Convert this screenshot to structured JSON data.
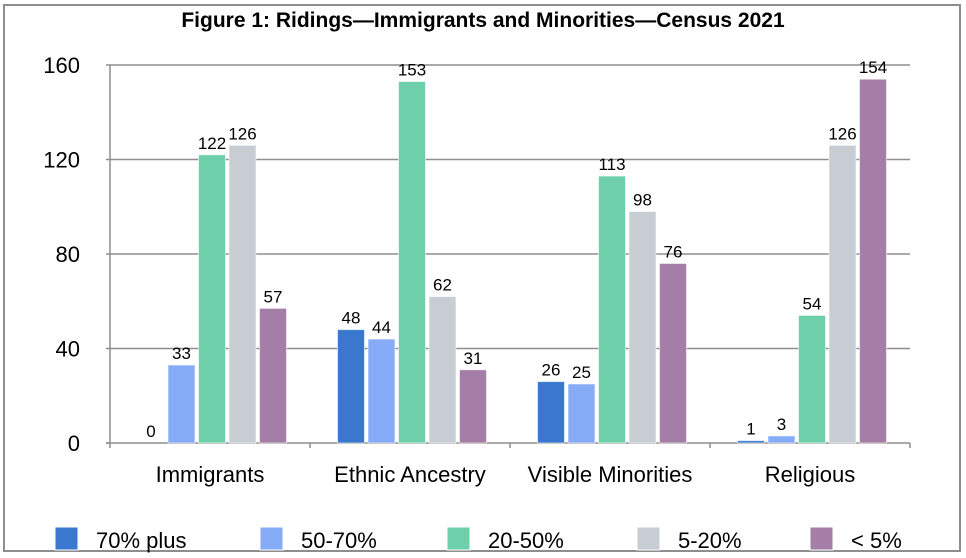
{
  "chart_data": {
    "type": "bar",
    "title": "Figure 1: Ridings—Immigrants and Minorities—Census 2021",
    "xlabel": "",
    "ylabel": "",
    "categories": [
      "Immigrants",
      "Ethnic Ancestry",
      "Visible Minorities",
      "Religious"
    ],
    "series": [
      {
        "name": "70% plus",
        "color": "#3a78cf",
        "values": [
          0,
          48,
          26,
          1
        ]
      },
      {
        "name": "50-70%",
        "color": "#86abf7",
        "values": [
          33,
          44,
          25,
          3
        ]
      },
      {
        "name": "20-50%",
        "color": "#6dd0ab",
        "values": [
          122,
          153,
          113,
          54
        ]
      },
      {
        "name": "5-20%",
        "color": "#c8cdd4",
        "values": [
          126,
          62,
          98,
          126
        ]
      },
      {
        "name": "< 5%",
        "color": "#a47ea7",
        "values": [
          57,
          31,
          76,
          154
        ]
      }
    ],
    "ylim": [
      0,
      160
    ],
    "yticks": [
      0,
      40,
      80,
      120,
      160
    ],
    "ytick_labels": [
      "0",
      "40",
      "80",
      "120",
      "160"
    ],
    "grid": true,
    "data_labels": true,
    "legend_position": "bottom"
  }
}
